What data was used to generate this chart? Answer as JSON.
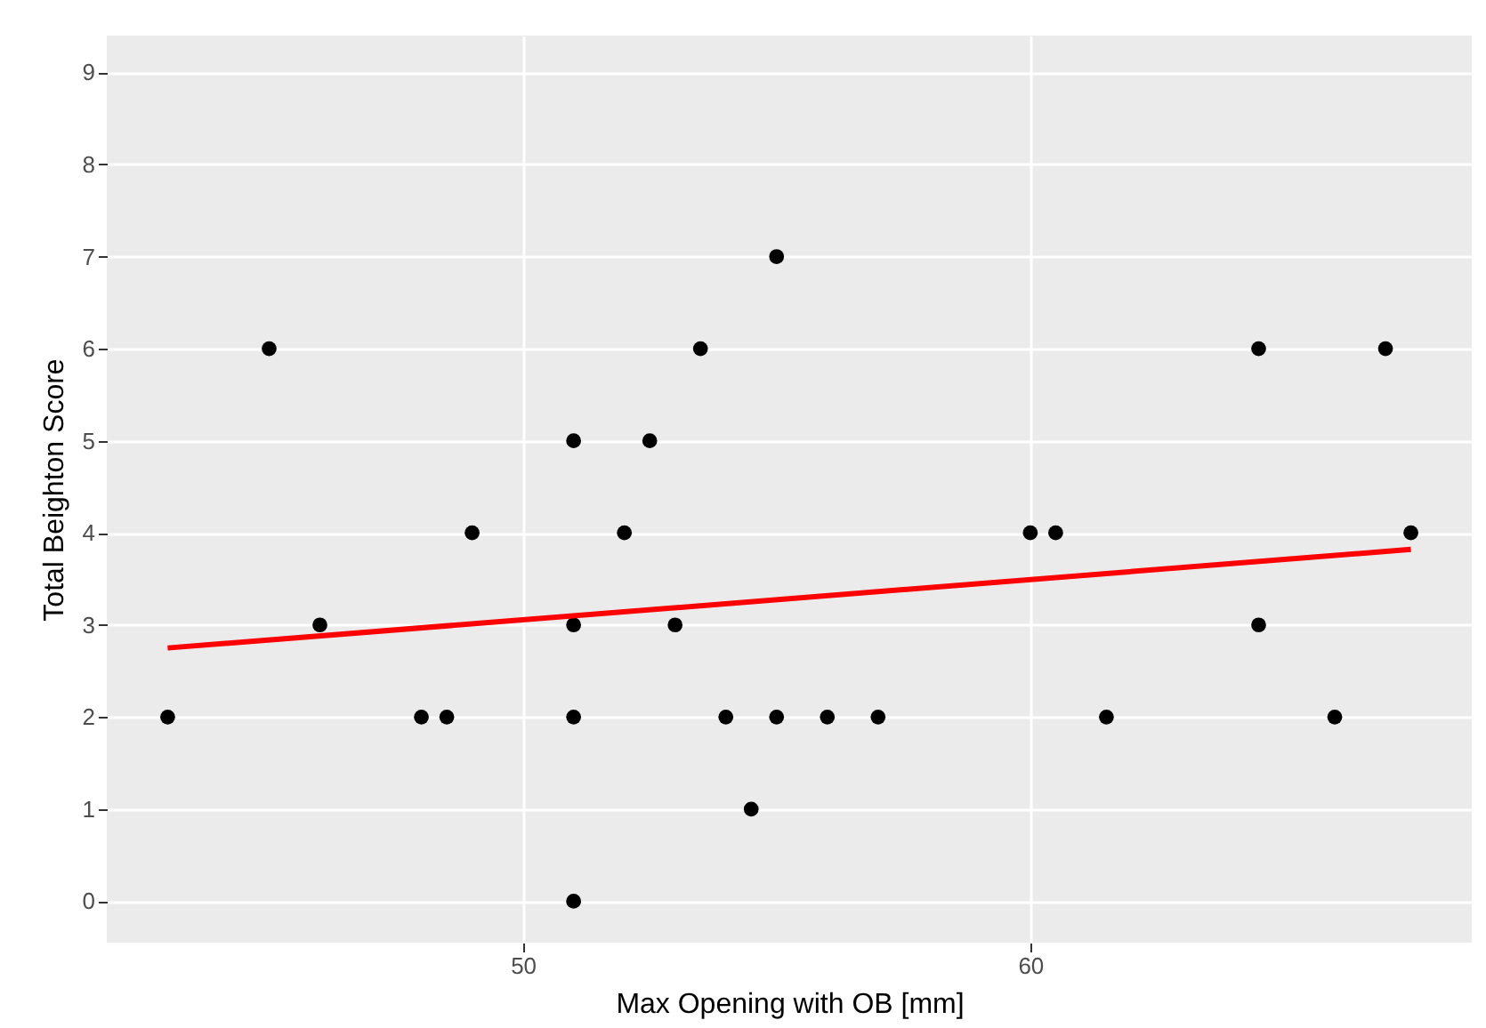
{
  "chart_data": {
    "type": "scatter",
    "xlabel": "Max Opening with OB [mm]",
    "ylabel": "Total Beighton Score",
    "xlim": [
      41.8,
      68.7
    ],
    "ylim": [
      -0.45,
      9.4
    ],
    "xticks": [
      50,
      60
    ],
    "yticks": [
      0,
      1,
      2,
      3,
      4,
      5,
      6,
      7,
      8,
      9
    ],
    "grid": true,
    "series": [
      {
        "marker": "circle",
        "color": "#000000",
        "x": [
          43,
          45,
          46,
          48,
          48.5,
          49,
          51,
          51,
          51,
          51,
          52,
          52.5,
          53,
          53.5,
          54,
          54.5,
          55,
          55,
          56,
          57,
          60,
          60.5,
          61.5,
          64.5,
          64.5,
          66,
          67,
          67.5
        ],
        "values": [
          2,
          6,
          3,
          2,
          2,
          4,
          5,
          3,
          2,
          0,
          4,
          5,
          3,
          6,
          2,
          1,
          7,
          2,
          2,
          2,
          4,
          4,
          2,
          6,
          3,
          2,
          6,
          4
        ]
      },
      {
        "type": "line",
        "color": "#ff0000",
        "x": [
          43,
          67.5
        ],
        "values": [
          2.75,
          3.82
        ]
      }
    ]
  }
}
